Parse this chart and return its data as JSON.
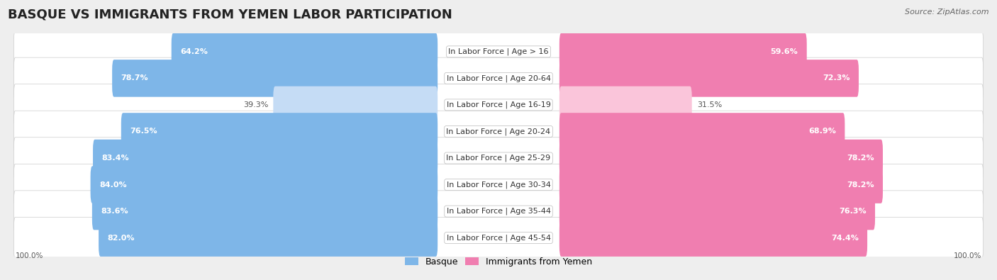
{
  "title": "BASQUE VS IMMIGRANTS FROM YEMEN LABOR PARTICIPATION",
  "source": "Source: ZipAtlas.com",
  "categories": [
    "In Labor Force | Age > 16",
    "In Labor Force | Age 20-64",
    "In Labor Force | Age 16-19",
    "In Labor Force | Age 20-24",
    "In Labor Force | Age 25-29",
    "In Labor Force | Age 30-34",
    "In Labor Force | Age 35-44",
    "In Labor Force | Age 45-54"
  ],
  "basque_values": [
    64.2,
    78.7,
    39.3,
    76.5,
    83.4,
    84.0,
    83.6,
    82.0
  ],
  "yemen_values": [
    59.6,
    72.3,
    31.5,
    68.9,
    78.2,
    78.2,
    76.3,
    74.4
  ],
  "basque_color": "#7EB6E8",
  "basque_color_light": "#C5DCF5",
  "yemen_color": "#F07EB0",
  "yemen_color_light": "#FAC5DA",
  "bg_color": "#EEEEEE",
  "bar_max": 100.0,
  "title_fontsize": 13,
  "label_fontsize": 8.0,
  "value_fontsize": 8.0,
  "legend_fontsize": 9,
  "source_fontsize": 8
}
